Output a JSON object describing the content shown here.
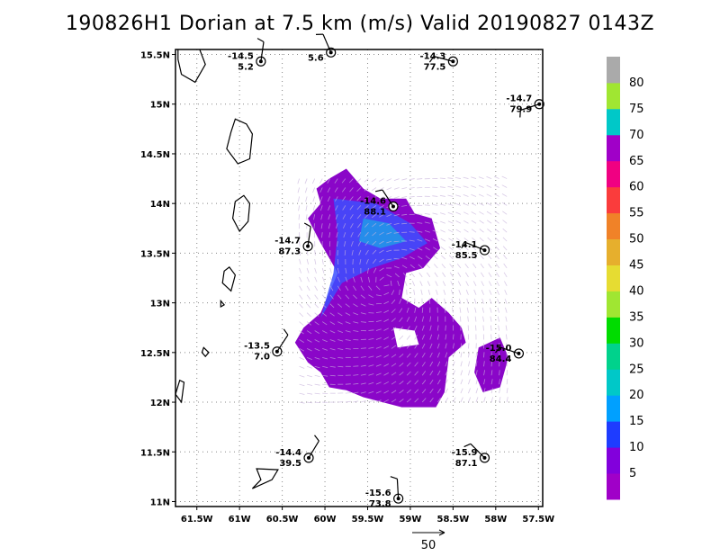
{
  "title": "190826H1 Dorian at 7.5 km (m/s) Valid 20190827 0143Z",
  "chart_data": {
    "type": "scatter",
    "title": "190826H1 Dorian at 7.5 km (m/s) Valid 20190827 0143Z",
    "x_ticks": [
      "61.5W",
      "61W",
      "60.5W",
      "60W",
      "59.5W",
      "59W",
      "58.5W",
      "58W",
      "57.5W"
    ],
    "x_tick_values": [
      -61.5,
      -61.0,
      -60.5,
      -60.0,
      -59.5,
      -59.0,
      -58.5,
      -58.0,
      -57.5
    ],
    "y_ticks": [
      "15.5N",
      "15N",
      "14.5N",
      "14N",
      "13.5N",
      "13N",
      "12.5N",
      "12N",
      "11.5N",
      "11N"
    ],
    "y_tick_values": [
      15.5,
      15.0,
      14.5,
      14.0,
      13.5,
      13.0,
      12.5,
      12.0,
      11.5,
      11.0
    ],
    "xlim": [
      -61.75,
      -57.45
    ],
    "ylim": [
      10.95,
      15.55
    ],
    "grid": true,
    "colorbar": {
      "labels": [
        "5",
        "10",
        "15",
        "20",
        "25",
        "30",
        "35",
        "40",
        "45",
        "50",
        "55",
        "60",
        "65",
        "70",
        "75",
        "80"
      ],
      "colors": [
        "#a000c8",
        "#8200dc",
        "#1e3cff",
        "#00a0ff",
        "#00c8c8",
        "#00d28c",
        "#00dc00",
        "#a0e632",
        "#e6dc32",
        "#e6af2d",
        "#f08228",
        "#fa3c3c",
        "#f00082",
        "#a000c8",
        "#00c8c8",
        "#a0e632",
        "#aaaaaa"
      ]
    },
    "stations": [
      {
        "lon": -60.75,
        "lat": 15.43,
        "temp": "-14.5",
        "wind": "5.2"
      },
      {
        "lon": -59.93,
        "lat": 15.52,
        "temp": "",
        "wind": "5.6"
      },
      {
        "lon": -58.5,
        "lat": 15.43,
        "temp": "-14.3",
        "wind": "77.5"
      },
      {
        "lon": -57.49,
        "lat": 15.0,
        "temp": "-14.7",
        "wind": "79.9"
      },
      {
        "lon": -59.2,
        "lat": 13.97,
        "temp": "-14.6",
        "wind": "88.1"
      },
      {
        "lon": -60.2,
        "lat": 13.57,
        "temp": "-14.7",
        "wind": "87.3"
      },
      {
        "lon": -58.13,
        "lat": 13.53,
        "temp": "-14.1",
        "wind": "85.5"
      },
      {
        "lon": -60.56,
        "lat": 12.51,
        "temp": "-13.5",
        "wind": "7.0"
      },
      {
        "lon": -57.73,
        "lat": 12.49,
        "temp": "-15.0",
        "wind": "84.4"
      },
      {
        "lon": -60.19,
        "lat": 11.44,
        "temp": "-14.4",
        "wind": "39.5"
      },
      {
        "lon": -58.13,
        "lat": 11.44,
        "temp": "-15.9",
        "wind": "87.1"
      },
      {
        "lon": -59.14,
        "lat": 11.03,
        "temp": "-15.6",
        "wind": "73.8"
      }
    ],
    "reference_vector_label": "50"
  }
}
